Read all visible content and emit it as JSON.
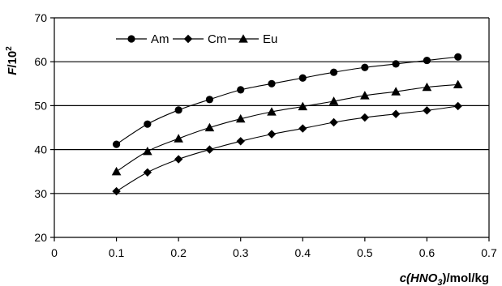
{
  "chart_data": {
    "type": "line",
    "xlabel": "c(HNO3)/mol/kg",
    "xlabel_parts": {
      "pre": "c(HNO",
      "sub": "3",
      "post": ")/mol/kg"
    },
    "ylabel": "F/10^2",
    "ylabel_parts": {
      "var": "F",
      "base": "/10",
      "sup": "2"
    },
    "xlim": [
      0,
      0.7
    ],
    "ylim": [
      20,
      70
    ],
    "x_ticks": [
      0,
      0.1,
      0.2,
      0.3,
      0.4,
      0.5,
      0.6,
      0.7
    ],
    "x_tick_labels": [
      "0",
      "0.1",
      "0.2",
      "0.3",
      "0.4",
      "0.5",
      "0.6",
      "0.7"
    ],
    "y_ticks": [
      20,
      30,
      40,
      50,
      60,
      70
    ],
    "y_tick_labels": [
      "20",
      "30",
      "40",
      "50",
      "60",
      "70"
    ],
    "grid": "horizontal",
    "legend_position": "top-left",
    "x": [
      0.1,
      0.15,
      0.2,
      0.25,
      0.3,
      0.35,
      0.4,
      0.45,
      0.5,
      0.55,
      0.6,
      0.65
    ],
    "series": [
      {
        "name": "Am",
        "marker": "circle",
        "values": [
          41.2,
          45.8,
          49.0,
          51.4,
          53.6,
          55.0,
          56.3,
          57.6,
          58.7,
          59.5,
          60.3,
          61.1
        ]
      },
      {
        "name": "Cm",
        "marker": "diamond",
        "values": [
          30.5,
          34.8,
          37.8,
          40.0,
          41.9,
          43.5,
          44.8,
          46.2,
          47.3,
          48.1,
          48.9,
          49.9
        ]
      },
      {
        "name": "Eu",
        "marker": "triangle",
        "values": [
          35.0,
          39.6,
          42.5,
          45.0,
          47.0,
          48.6,
          49.8,
          51.0,
          52.3,
          53.2,
          54.2,
          54.8
        ]
      }
    ],
    "colors": {
      "line": "#000000",
      "grid": "#000000",
      "background": "#ffffff"
    }
  }
}
